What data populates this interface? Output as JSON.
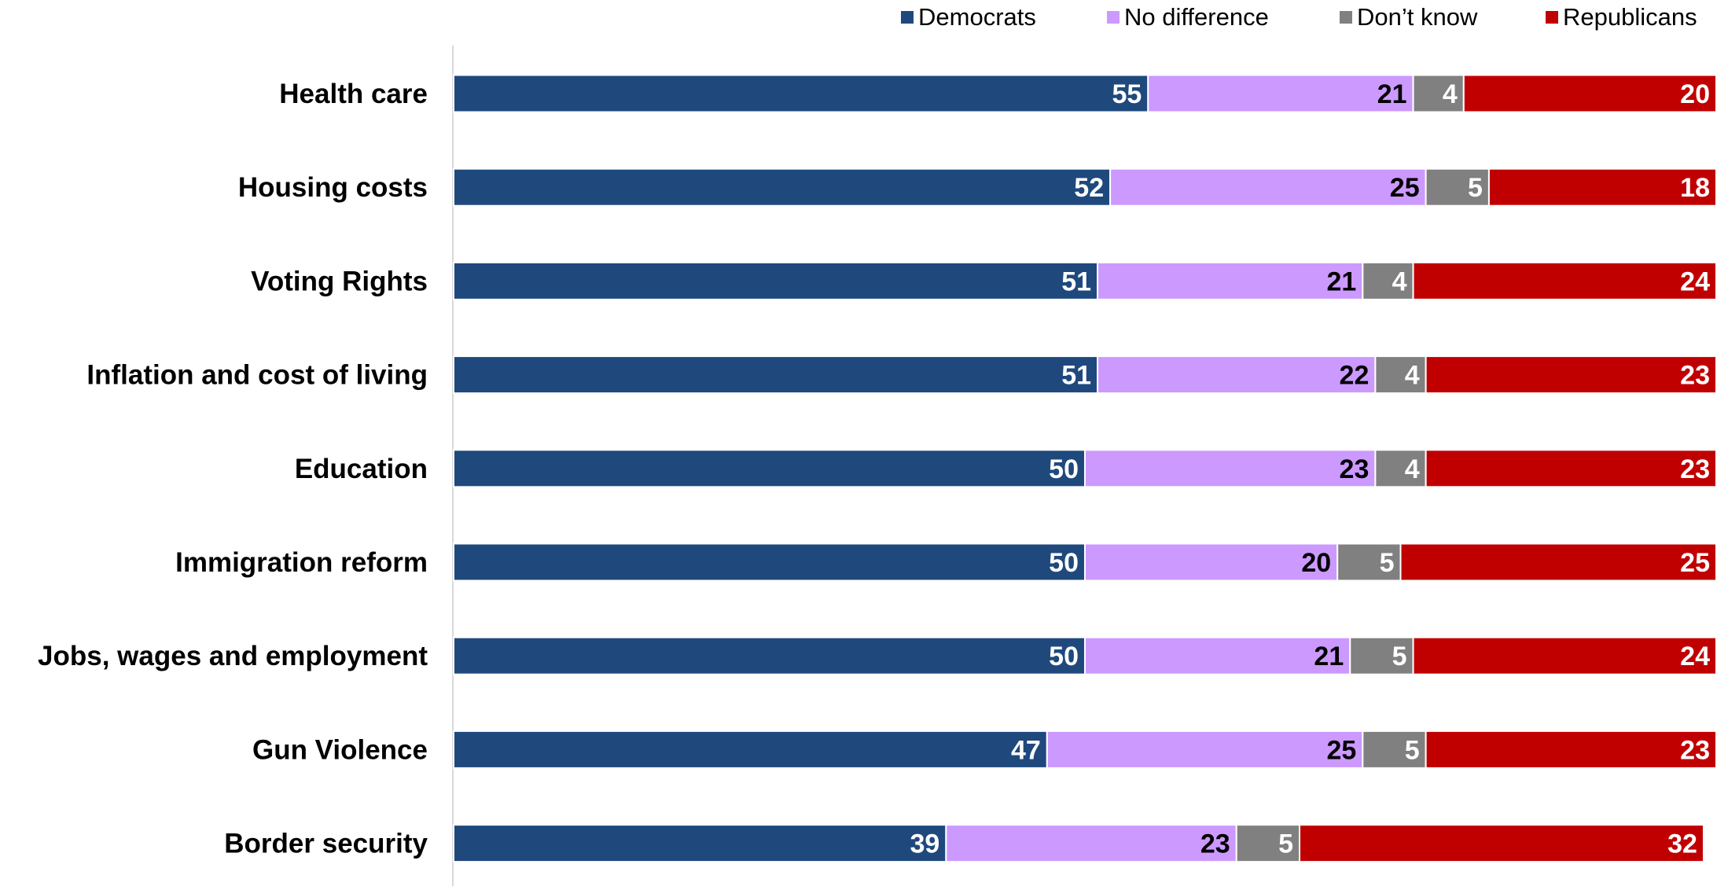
{
  "chart_data": {
    "type": "bar",
    "orientation": "horizontal",
    "stacked": true,
    "categories": [
      "Health care",
      "Housing costs",
      "Voting Rights",
      "Inflation and cost of living",
      "Education",
      "Immigration reform",
      "Jobs, wages and employment",
      "Gun Violence",
      "Border security"
    ],
    "series": [
      {
        "name": "Democrats",
        "color": "#1f497d",
        "values": [
          55,
          52,
          51,
          51,
          50,
          50,
          50,
          47,
          39
        ]
      },
      {
        "name": "No difference",
        "color": "#cc99ff",
        "values": [
          21,
          25,
          21,
          22,
          23,
          20,
          21,
          25,
          23
        ]
      },
      {
        "name": "Don’t know",
        "color": "#808080",
        "values": [
          4,
          5,
          4,
          4,
          4,
          5,
          5,
          5,
          5
        ]
      },
      {
        "name": "Republicans",
        "color": "#c00000",
        "values": [
          20,
          18,
          24,
          23,
          23,
          25,
          24,
          23,
          32
        ]
      }
    ],
    "xlim": [
      0,
      100
    ],
    "legend": "top-right",
    "grid": false,
    "data_labels": true
  }
}
